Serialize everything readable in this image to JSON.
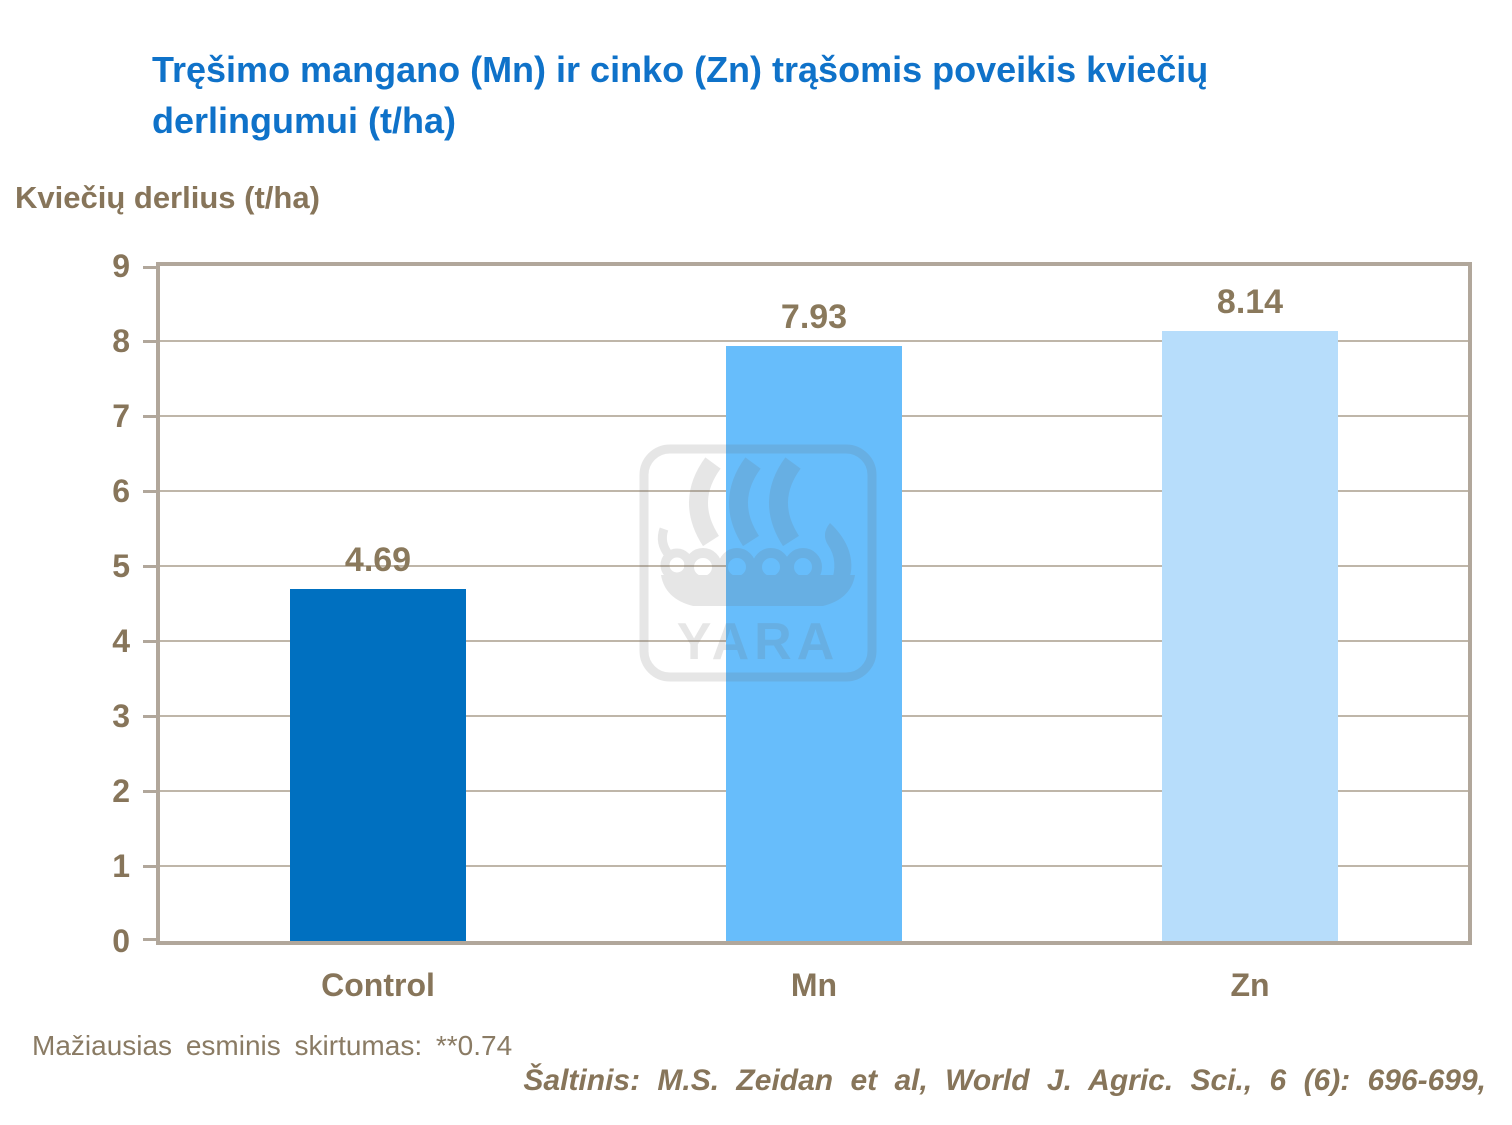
{
  "title": {
    "line1": "Tręšimo mangano (Mn) ir cinko (Zn) trąšomis poveikis kviečių",
    "line2": "derlingumui (t/ha)"
  },
  "y_axis_title": "Kviečių derlius (t/ha)",
  "footer_note": "Mažiausias esminis skirtumas: **0.74",
  "source": "Šaltinis: M.S. Zeidan et al, World J. Agric. Sci., 6 (6): 696-699,",
  "watermark_text": "YARA",
  "colors": {
    "title_blue": "#0F72C9",
    "label_brown": "#87755A",
    "axis_line": "#B1A79B",
    "gridline": "#BFB6A9",
    "watermark_gray": "#6A6A6A"
  },
  "chart_data": {
    "type": "bar",
    "title": "Tręšimo mangano (Mn) ir cinko (Zn) trąšomis poveikis kviečių derlingumui (t/ha)",
    "categories": [
      "Control",
      "Mn",
      "Zn"
    ],
    "values": [
      4.69,
      7.93,
      8.14
    ],
    "data_labels": [
      "4.69",
      "7.93",
      "8.14"
    ],
    "bar_colors": [
      "#0070C0",
      "#67BDFB",
      "#B7DDFB"
    ],
    "xlabel": "",
    "ylabel": "Kviečių derlius (t/ha)",
    "ylim": [
      0,
      9
    ],
    "yticks": [
      0,
      1,
      2,
      3,
      4,
      5,
      6,
      7,
      8,
      9
    ],
    "grid": true,
    "legend": false
  }
}
